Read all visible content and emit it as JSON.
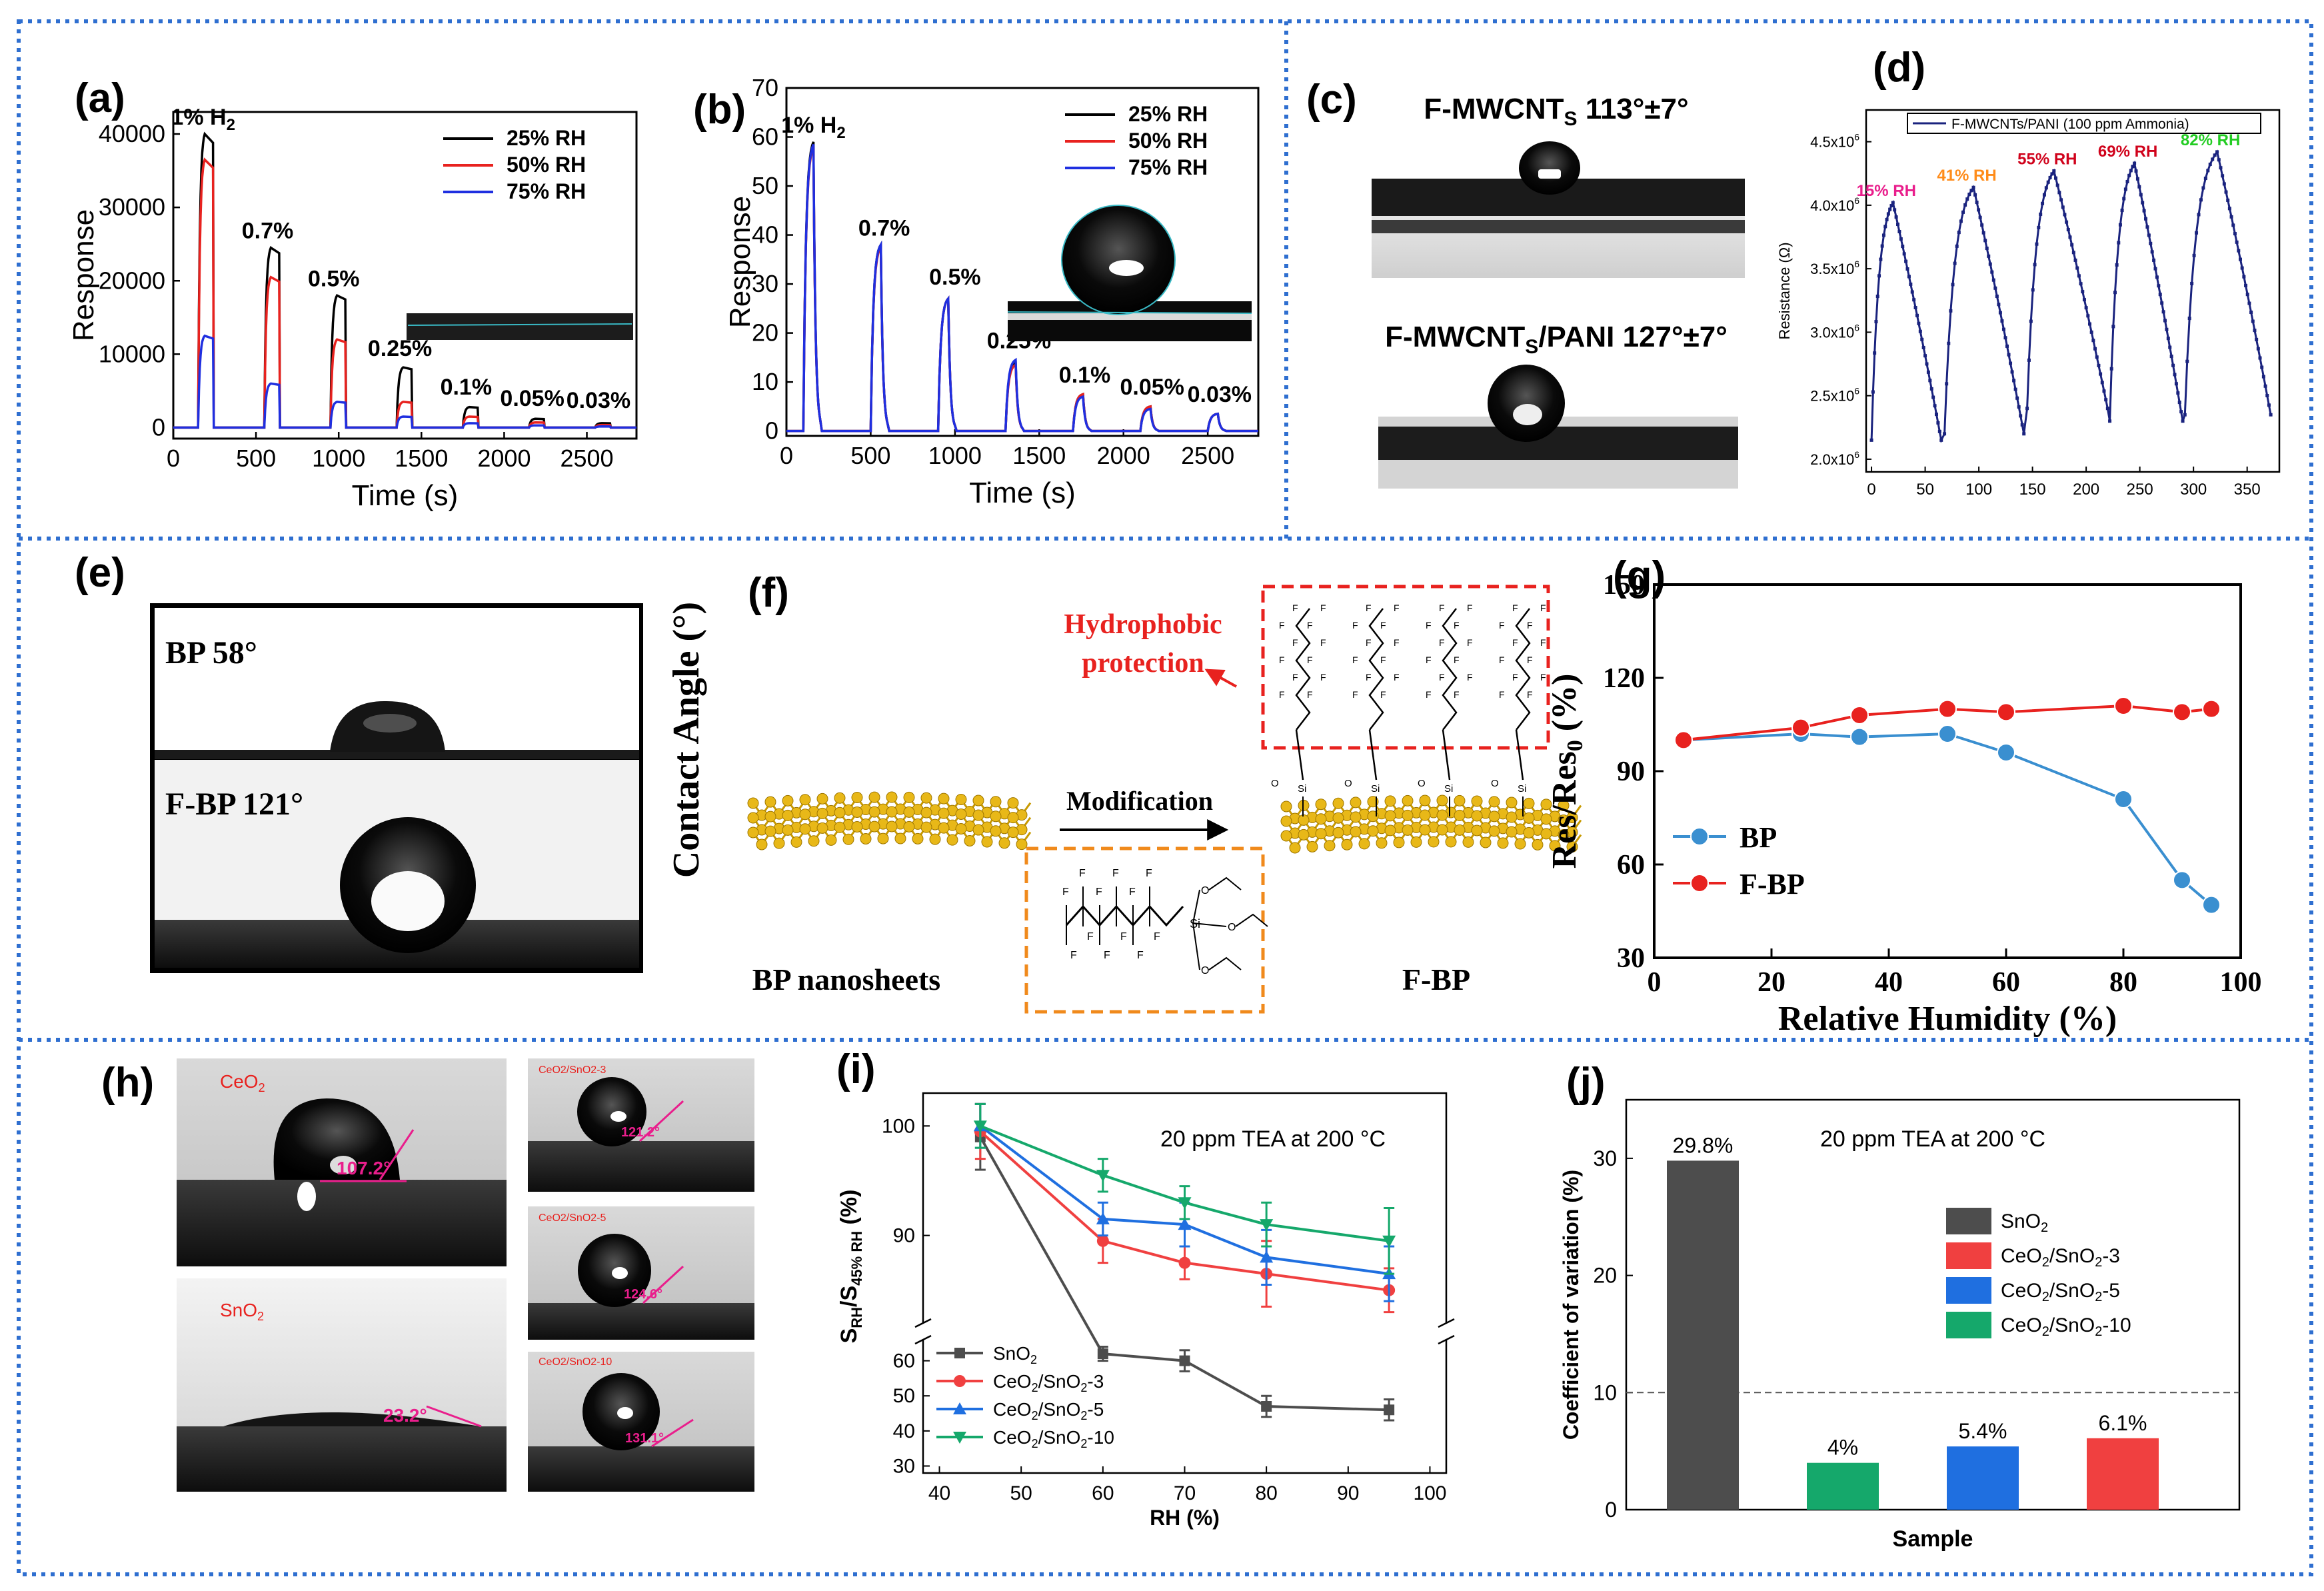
{
  "panels": {
    "a": {
      "label": "(a)"
    },
    "b": {
      "label": "(b)"
    },
    "c": {
      "label": "(c)",
      "top_caption": "F-MWCNT",
      "top_sub": "S",
      "top_angle": " 113°±7°",
      "bottom_caption": "F-MWCNT",
      "bottom_sub": "S",
      "bottom_rest": "/PANI 127°±7°"
    },
    "d": {
      "label": "(d)"
    },
    "e": {
      "label": "(e)",
      "top_caption": "BP 58°",
      "bottom_caption": "F-BP 121°",
      "ylabel": "Contact Angle (°)"
    },
    "f": {
      "label": "(f)",
      "hydro_line1": "Hydrophobic",
      "hydro_line2": "protection",
      "arrow_label": "Modification",
      "left_caption": "BP nanosheets",
      "right_caption": "F-BP",
      "atom_F": "F",
      "atom_Si": "Si",
      "atom_O": "O"
    },
    "g": {
      "label": "(g)"
    },
    "h": {
      "label": "(h)",
      "ceo2": "CeO",
      "ceo2_sub": "2",
      "sno2": "SnO",
      "sno2_sub": "2",
      "angle_ceo2": "107.2°",
      "angle_sno2": "23.2°",
      "s3": "CeO2/SnO2-3",
      "s5": "CeO2/SnO2-5",
      "s10": "CeO2/SnO2-10",
      "angle_s3": "121.2°",
      "angle_s5": "124.6°",
      "angle_s10": "131.1°"
    },
    "i": {
      "label": "(i)"
    },
    "j": {
      "label": "(j)"
    }
  },
  "colors": {
    "border_blue": "#2f6fd0",
    "black": "#000000",
    "red": "#e8221f",
    "blue": "#1f2fe0",
    "navy": "#1a237e",
    "magenta": "#e91e8c",
    "gray": "#4d4d4d",
    "green": "#15a86b",
    "cyan": "#3a8fd0"
  },
  "chart_data": [
    {
      "id": "a",
      "type": "line",
      "title": "",
      "xlabel": "Time (s)",
      "ylabel": "Response",
      "xlim": [
        0,
        2800
      ],
      "ylim": [
        -1500,
        43000
      ],
      "xticks": [
        0,
        500,
        1000,
        1500,
        2000,
        2500
      ],
      "yticks": [
        0,
        10000,
        20000,
        30000,
        40000
      ],
      "annotations": [
        {
          "text": "1% H",
          "sub": "2",
          "x": 180,
          "y": 40000
        },
        {
          "text": "0.7%",
          "x": 570,
          "y": 24500
        },
        {
          "text": "0.5%",
          "x": 970,
          "y": 18000
        },
        {
          "text": "0.25%",
          "x": 1370,
          "y": 8500
        },
        {
          "text": "0.1%",
          "x": 1770,
          "y": 3200
        },
        {
          "text": "0.05%",
          "x": 2170,
          "y": 1700
        },
        {
          "text": "0.03%",
          "x": 2570,
          "y": 1400
        }
      ],
      "pulse_starts": [
        150,
        550,
        950,
        1350,
        1750,
        2150,
        2550
      ],
      "series": [
        {
          "name": "25% RH",
          "color": "#000000",
          "peaks": [
            40000,
            24500,
            18000,
            8200,
            2800,
            1200,
            600
          ]
        },
        {
          "name": "50% RH",
          "color": "#e8221f",
          "peaks": [
            36500,
            20500,
            12000,
            3500,
            1500,
            700,
            350
          ]
        },
        {
          "name": "75% RH",
          "color": "#1f2fe0",
          "peaks": [
            12500,
            6000,
            3500,
            1500,
            600,
            300,
            150
          ]
        }
      ]
    },
    {
      "id": "b",
      "type": "line",
      "title": "",
      "xlabel": "Time (s)",
      "ylabel": "Response",
      "xlim": [
        0,
        2800
      ],
      "ylim": [
        -1,
        70
      ],
      "xticks": [
        0,
        500,
        1000,
        1500,
        2000,
        2500
      ],
      "yticks": [
        0,
        10,
        20,
        30,
        40,
        50,
        60,
        70
      ],
      "annotations": [
        {
          "text": "1% H",
          "sub": "2",
          "x": 160,
          "y": 59
        },
        {
          "text": "0.7%",
          "x": 580,
          "y": 38
        },
        {
          "text": "0.5%",
          "x": 1000,
          "y": 28
        },
        {
          "text": "0.25%",
          "x": 1380,
          "y": 15
        },
        {
          "text": "0.1%",
          "x": 1770,
          "y": 8
        },
        {
          "text": "0.05%",
          "x": 2170,
          "y": 5.5
        },
        {
          "text": "0.03%",
          "x": 2570,
          "y": 4
        }
      ],
      "pulse_starts": [
        100,
        500,
        900,
        1300,
        1700,
        2100,
        2500
      ],
      "series": [
        {
          "name": "25% RH",
          "color": "#000000",
          "peaks": [
            59,
            38,
            27,
            14,
            7.5,
            5,
            3.5
          ]
        },
        {
          "name": "50% RH",
          "color": "#e8221f",
          "peaks": [
            58,
            37.5,
            27,
            13.5,
            7.5,
            5,
            3.5
          ]
        },
        {
          "name": "75% RH",
          "color": "#1f2fe0",
          "peaks": [
            58.5,
            38,
            27,
            14.5,
            7,
            4.5,
            3.5
          ]
        }
      ]
    },
    {
      "id": "d",
      "type": "line",
      "title": "",
      "xlabel": "",
      "ylabel": "Resistance (Ω)",
      "legend": "F-MWCNTs/PANI (100 ppm Ammonia)",
      "xlim": [
        -5,
        380
      ],
      "ylim": [
        1.9,
        4.75
      ],
      "xticks": [
        0,
        50,
        100,
        150,
        200,
        250,
        300,
        350
      ],
      "yticks": [
        2.0,
        2.5,
        3.0,
        3.5,
        4.0,
        4.5
      ],
      "ytick_unit": "x10^6",
      "cycles": [
        {
          "start": 0,
          "peak_t": 20,
          "end": 65,
          "base": 2.15,
          "peak": 4.02,
          "label": "15% RH",
          "label_color": "#e91e8c"
        },
        {
          "start": 68,
          "peak_t": 95,
          "end": 142,
          "base": 2.2,
          "peak": 4.14,
          "label": "41% RH",
          "label_color": "#ff8c1a"
        },
        {
          "start": 145,
          "peak_t": 170,
          "end": 220,
          "base": 2.4,
          "peak": 4.27,
          "label": "55% RH",
          "label_color": "#d0021b"
        },
        {
          "start": 222,
          "peak_t": 245,
          "end": 290,
          "base": 2.3,
          "peak": 4.33,
          "label": "69% RH",
          "label_color": "#d0021b"
        },
        {
          "start": 292,
          "peak_t": 322,
          "end": 372,
          "base": 2.35,
          "peak": 4.42,
          "label": "82% RH",
          "label_color": "#22cc22"
        }
      ]
    },
    {
      "id": "g",
      "type": "line",
      "title": "",
      "xlabel": "Relative Humidity (%)",
      "ylabel": "Res/Res0 (%)",
      "xlim": [
        0,
        100
      ],
      "ylim": [
        30,
        150
      ],
      "xticks": [
        0,
        20,
        40,
        60,
        80,
        100
      ],
      "yticks": [
        30,
        60,
        90,
        120,
        150
      ],
      "series": [
        {
          "name": "BP",
          "color": "#3a8fd0",
          "x": [
            5,
            25,
            35,
            50,
            60,
            80,
            90,
            95
          ],
          "y": [
            100,
            102,
            101,
            102,
            96,
            81,
            55,
            47
          ]
        },
        {
          "name": "F-BP",
          "color": "#e8221f",
          "x": [
            5,
            25,
            35,
            50,
            60,
            80,
            90,
            95
          ],
          "y": [
            100,
            104,
            108,
            110,
            109,
            111,
            109,
            110
          ]
        }
      ]
    },
    {
      "id": "i",
      "type": "line",
      "title": "20 ppm TEA at 200 °C",
      "xlabel": "RH (%)",
      "ylabel": "S_RH/S_45% RH (%)",
      "xticks": [
        40,
        50,
        60,
        70,
        80,
        90,
        100
      ],
      "xlim": [
        38,
        102
      ],
      "upper_ylim": [
        82,
        103
      ],
      "upper_yticks": [
        90,
        100
      ],
      "lower_ylim": [
        28,
        66
      ],
      "lower_yticks": [
        30,
        40,
        50,
        60
      ],
      "series": [
        {
          "name": "SnO2",
          "color": "#4d4d4d",
          "x": [
            45,
            60,
            70,
            80,
            95
          ],
          "y": [
            99,
            62,
            60,
            47,
            46
          ],
          "err": [
            3,
            2,
            3,
            3,
            3
          ]
        },
        {
          "name": "CeO2/SnO2-3",
          "color": "#f04040",
          "x": [
            45,
            60,
            70,
            80,
            95
          ],
          "y": [
            99.5,
            89.5,
            87.5,
            86.5,
            85
          ],
          "err": [
            2.5,
            2,
            1.5,
            3,
            2
          ]
        },
        {
          "name": "CeO2/SnO2-5",
          "color": "#1f6fe0",
          "x": [
            45,
            60,
            70,
            80,
            95
          ],
          "y": [
            100,
            91.5,
            91,
            88,
            86.5
          ],
          "err": [
            2,
            1.5,
            2,
            2.5,
            2.5
          ]
        },
        {
          "name": "CeO2/SnO2-10",
          "color": "#15a86b",
          "x": [
            45,
            60,
            70,
            80,
            95
          ],
          "y": [
            100,
            95.5,
            93,
            91,
            89.5
          ],
          "err": [
            2,
            1.5,
            1.5,
            2,
            3
          ]
        }
      ]
    },
    {
      "id": "j",
      "type": "bar",
      "title": "20 ppm TEA at 200 °C",
      "xlabel": "Sample",
      "ylabel": "Coefficient of variation (%)",
      "ylim": [
        0,
        35
      ],
      "yticks": [
        0,
        10,
        20,
        30
      ],
      "reference_line": 10,
      "values": [
        29.8,
        4,
        5.4,
        6.1
      ],
      "value_labels": [
        "29.8%",
        "4%",
        "5.4%",
        "6.1%"
      ],
      "bar_colors": [
        "#4d4d4d",
        "#15a86b",
        "#1f6fe0",
        "#f04040"
      ],
      "legend": [
        {
          "name": "SnO2",
          "color": "#4d4d4d"
        },
        {
          "name": "CeO2/SnO2-3",
          "color": "#f04040"
        },
        {
          "name": "CeO2/SnO2-5",
          "color": "#1f6fe0"
        },
        {
          "name": "CeO2/SnO2-10",
          "color": "#15a86b"
        }
      ]
    }
  ]
}
